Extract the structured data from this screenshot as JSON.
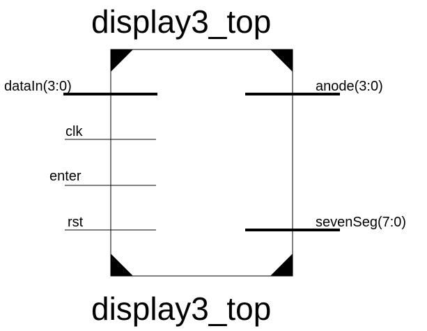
{
  "symbol": {
    "title_top": "display3_top",
    "title_bottom": "display3_top",
    "inputs": [
      {
        "name": "dataIn(3:0)",
        "bus": true
      },
      {
        "name": "clk",
        "bus": false
      },
      {
        "name": "enter",
        "bus": false
      },
      {
        "name": "rst",
        "bus": false
      }
    ],
    "outputs": [
      {
        "name": "anode(3:0)",
        "bus": true
      },
      {
        "name": "sevenSeg(7:0)",
        "bus": true
      }
    ]
  },
  "colors": {
    "line": "#000000",
    "background": "#ffffff"
  }
}
